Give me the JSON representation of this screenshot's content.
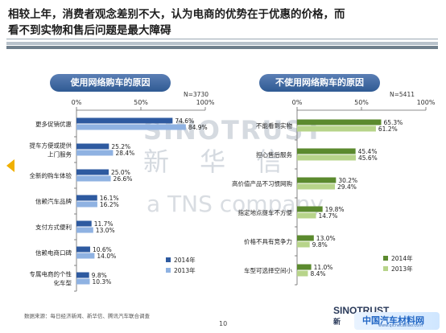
{
  "headline": "相较上年，消费者观念差别不大，认为电商的优势在于优惠的价格，而看不到实物和售后问题是最大障碍",
  "watermark": {
    "line1": "SINOTRUST",
    "line2": "新 华 信",
    "line3": "a TNS company"
  },
  "footer": {
    "source": "数据来源：每日经济新闻、新华信、腾讯汽车联合调查",
    "page": "10",
    "logo": "SINOTRUST",
    "logo_sub": "新",
    "brand": "中国汽车材料网",
    "brand_url": "www.qichecailiao.com"
  },
  "colors": {
    "left_2014": "#2e5aa0",
    "left_2013": "#8fb2e2",
    "right_2014": "#5b8a2e",
    "right_2013": "#b7d48a",
    "title_bg": "#3a67a3"
  },
  "chart_data": [
    {
      "type": "bar",
      "orientation": "horizontal",
      "title": "使用网络购车的原因",
      "n_label": "N=3730",
      "xlim": [
        0,
        100
      ],
      "x_ticks": [
        "0%",
        "50%",
        "100%"
      ],
      "categories": [
        "更多促销优惠",
        "提车方便或提供上门服务",
        "全新的购车体验",
        "信赖汽车品牌",
        "支付方式便利",
        "信赖电商口碑",
        "专属电商的个性化车型"
      ],
      "category_lines": [
        [
          "更多促销优惠"
        ],
        [
          "提车方便或提供",
          "上门服务"
        ],
        [
          "全新的购车体验"
        ],
        [
          "信赖汽车品牌"
        ],
        [
          "支付方式便利"
        ],
        [
          "信赖电商口碑"
        ],
        [
          "专属电商的个性",
          "化车型"
        ]
      ],
      "series": [
        {
          "name": "2014年",
          "values": [
            74.6,
            25.2,
            25.0,
            16.1,
            11.7,
            10.6,
            9.8
          ]
        },
        {
          "name": "2013年",
          "values": [
            84.9,
            28.4,
            26.6,
            16.2,
            13.0,
            14.0,
            10.3
          ]
        }
      ],
      "value_labels": [
        [
          "74.6%",
          "25.2%",
          "25.0%",
          "16.1%",
          "11.7%",
          "10.6%",
          "9.8%"
        ],
        [
          "84.9%",
          "28.4%",
          "26.6%",
          "16.2%",
          "13.0%",
          "14.0%",
          "10.3%"
        ]
      ],
      "legend_position": "bottom-right"
    },
    {
      "type": "bar",
      "orientation": "horizontal",
      "title": "不使用网络购车的原因",
      "n_label": "N=5411",
      "xlim": [
        0,
        100
      ],
      "x_ticks": [
        "0%",
        "50%",
        "100%"
      ],
      "categories": [
        "不能看到实物",
        "担心售后服务",
        "高价值产品不习惯网购",
        "指定地点提车不方便",
        "价格不具有竞争力",
        "车型可选择空间小"
      ],
      "category_lines": [
        [
          "不能看到实物"
        ],
        [
          "担心售后服务"
        ],
        [
          "高价值产品不习惯网购"
        ],
        [
          "指定地点提车不方便"
        ],
        [
          "价格不具有竞争力"
        ],
        [
          "车型可选择空间小"
        ]
      ],
      "series": [
        {
          "name": "2014年",
          "values": [
            65.3,
            45.4,
            30.2,
            19.8,
            13.0,
            11.0
          ]
        },
        {
          "name": "2013年",
          "values": [
            61.2,
            45.6,
            29.4,
            14.7,
            9.8,
            8.4
          ]
        }
      ],
      "value_labels": [
        [
          "65.3%",
          "45.4%",
          "30.2%",
          "19.8%",
          "13.0%",
          "11.0%"
        ],
        [
          "61.2%",
          "45.6%",
          "29.4%",
          "14.7%",
          "9.8%",
          "8.4%"
        ]
      ],
      "legend_position": "bottom-right"
    }
  ]
}
